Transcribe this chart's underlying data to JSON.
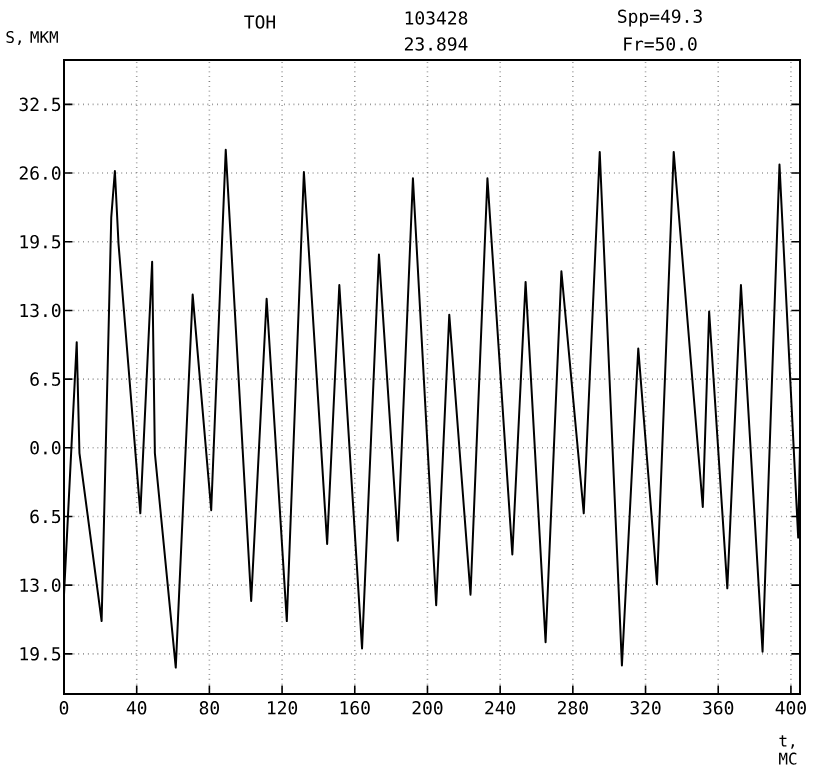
{
  "chart_data": {
    "type": "line",
    "title": "ТОН",
    "ylabel": "S, МКМ",
    "xlabel": "t, МС",
    "annotations": [
      "103428",
      "23.894",
      "Spp=49.3",
      "Fr=50.0"
    ],
    "x": [
      0,
      7,
      8.5,
      20.7,
      26,
      28,
      30,
      42,
      48.5,
      50,
      61.5,
      70.8,
      81,
      89,
      103,
      111.5,
      122.6,
      132,
      144.8,
      151.5,
      164,
      173.3,
      183.7,
      192,
      204.8,
      212,
      223.7,
      233,
      246.7,
      254,
      265,
      273.7,
      286,
      294.8,
      307,
      316,
      326.3,
      335.5,
      351.5,
      355,
      365,
      372.5,
      384.4,
      393.7,
      404,
      405
    ],
    "values": [
      -13.9,
      10.0,
      -0.5,
      -16.4,
      21.8,
      26.2,
      19.3,
      -6.2,
      17.6,
      -0.5,
      -20.8,
      14.5,
      -5.9,
      28.2,
      -14.5,
      14.1,
      -16.4,
      26.1,
      -9.1,
      15.4,
      -19.0,
      18.3,
      -8.8,
      25.5,
      -14.9,
      12.6,
      -13.9,
      25.5,
      -10.1,
      15.7,
      -18.4,
      16.7,
      -6.2,
      28.0,
      -20.6,
      9.4,
      -12.9,
      28.0,
      -5.6,
      12.9,
      -13.3,
      15.4,
      -19.3,
      26.8,
      -8.5,
      0.3
    ],
    "color": "#000000",
    "line_style": "solid",
    "marker": "none",
    "grid": true,
    "xlim": [
      0,
      405
    ],
    "ylim": [
      -23.3,
      36.7
    ],
    "xticks": [
      0,
      40,
      80,
      120,
      160,
      200,
      240,
      280,
      320,
      360,
      400
    ],
    "yticks": [
      {
        "value": 32.5,
        "label": "32.5"
      },
      {
        "value": 26,
        "label": "26.0"
      },
      {
        "value": 19.5,
        "label": "19.5"
      },
      {
        "value": 13,
        "label": "13.0"
      },
      {
        "value": 6.5,
        "label": "6.5"
      },
      {
        "value": 0,
        "label": "0.0"
      },
      {
        "value": -6.5,
        "label": "6.5"
      },
      {
        "value": -13,
        "label": "13.0"
      },
      {
        "value": -19.5,
        "label": "19.5"
      }
    ]
  }
}
